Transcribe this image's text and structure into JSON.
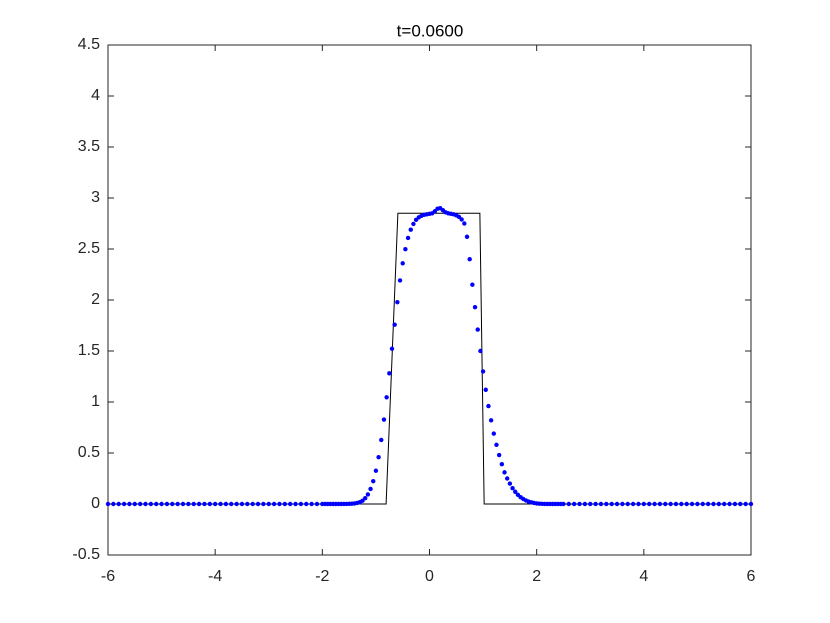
{
  "chart_data": {
    "type": "line",
    "title": "t=0.0600",
    "xlim": [
      -6,
      6
    ],
    "xticks": [
      -6,
      -4,
      -2,
      0,
      2,
      4,
      6
    ],
    "ylim": [
      -0.5,
      4.5
    ],
    "yticks": [
      -0.5,
      0,
      0.5,
      1,
      1.5,
      2,
      2.5,
      3,
      3.5,
      4,
      4.5
    ],
    "box": true,
    "series": [
      {
        "style": "line",
        "color": "#000000",
        "x": [
          -6,
          -0.81,
          -0.59,
          0.94,
          1.02,
          6
        ],
        "values": [
          0,
          0,
          2.85,
          2.85,
          0,
          0
        ]
      },
      {
        "style": "dots",
        "color": "#0000ff",
        "x": [
          -6,
          -5.9,
          -5.8,
          -5.7,
          -5.6,
          -5.5,
          -5.4,
          -5.3,
          -5.2,
          -5.1,
          -5,
          -4.9,
          -4.8,
          -4.7,
          -4.6,
          -4.5,
          -4.4,
          -4.3,
          -4.2,
          -4.1,
          -4,
          -3.9,
          -3.8,
          -3.7,
          -3.6,
          -3.5,
          -3.4,
          -3.3,
          -3.2,
          -3.1,
          -3,
          -2.9,
          -2.8,
          -2.7,
          -2.6,
          -2.5,
          -2.4,
          -2.3,
          -2.2,
          -2.1,
          -2,
          -1.95,
          -1.9,
          -1.85,
          -1.8,
          -1.75,
          -1.7,
          -1.65,
          -1.6,
          -1.55,
          -1.5,
          -1.45,
          -1.4,
          -1.35,
          -1.3,
          -1.25,
          -1.2,
          -1.15,
          -1.1,
          -1.05,
          -1,
          -0.95,
          -0.9,
          -0.85,
          -0.8,
          -0.75,
          -0.7,
          -0.65,
          -0.6,
          -0.55,
          -0.5,
          -0.45,
          -0.4,
          -0.35,
          -0.3,
          -0.25,
          -0.2,
          -0.15,
          -0.1,
          -0.05,
          0,
          0.05,
          0.1,
          0.15,
          0.2,
          0.25,
          0.3,
          0.35,
          0.4,
          0.45,
          0.5,
          0.55,
          0.6,
          0.65,
          0.7,
          0.75,
          0.8,
          0.85,
          0.9,
          0.95,
          1,
          1.05,
          1.1,
          1.15,
          1.2,
          1.25,
          1.3,
          1.35,
          1.4,
          1.45,
          1.5,
          1.55,
          1.6,
          1.65,
          1.7,
          1.75,
          1.8,
          1.85,
          1.9,
          1.95,
          2,
          2.05,
          2.1,
          2.15,
          2.2,
          2.25,
          2.3,
          2.35,
          2.4,
          2.45,
          2.5,
          2.6,
          2.7,
          2.8,
          2.9,
          3,
          3.1,
          3.2,
          3.3,
          3.4,
          3.5,
          3.6,
          3.7,
          3.8,
          3.9,
          4,
          4.1,
          4.2,
          4.3,
          4.4,
          4.5,
          4.6,
          4.7,
          4.8,
          4.9,
          5,
          5.1,
          5.2,
          5.3,
          5.4,
          5.5,
          5.6,
          5.7,
          5.8,
          5.9,
          6
        ],
        "values": [
          0,
          0,
          0,
          0,
          0,
          0,
          0,
          0,
          0,
          0,
          0,
          0,
          0,
          0,
          0,
          0,
          0,
          0,
          0,
          0,
          0,
          0,
          0,
          0,
          0,
          0,
          0,
          0,
          0,
          0,
          0,
          0,
          0,
          0,
          0,
          0,
          0,
          0,
          0,
          0,
          0,
          0,
          0,
          0,
          0,
          0,
          0,
          0,
          0.001,
          0.001,
          0.002,
          0.003,
          0.005,
          0.01,
          0.018,
          0.032,
          0.057,
          0.094,
          0.148,
          0.224,
          0.326,
          0.459,
          0.628,
          0.828,
          1.046,
          1.281,
          1.522,
          1.758,
          1.979,
          2.192,
          2.36,
          2.498,
          2.608,
          2.689,
          2.746,
          2.786,
          2.81,
          2.825,
          2.835,
          2.84,
          2.845,
          2.85,
          2.87,
          2.895,
          2.9,
          2.88,
          2.86,
          2.85,
          2.845,
          2.84,
          2.83,
          2.815,
          2.79,
          2.75,
          2.62,
          2.4,
          2.15,
          1.93,
          1.71,
          1.5,
          1.3,
          1.12,
          0.96,
          0.82,
          0.69,
          0.58,
          0.48,
          0.39,
          0.31,
          0.25,
          0.2,
          0.155,
          0.12,
          0.09,
          0.067,
          0.049,
          0.035,
          0.024,
          0.016,
          0.01,
          0.006,
          0.003,
          0.002,
          0.001,
          0,
          0,
          0,
          0,
          0,
          0,
          0,
          0,
          0,
          0,
          0,
          0,
          0,
          0,
          0,
          0,
          0,
          0,
          0,
          0,
          0,
          0,
          0,
          0,
          0,
          0,
          0,
          0,
          0,
          0,
          0,
          0,
          0,
          0,
          0,
          0,
          0,
          0,
          0,
          0,
          0,
          0
        ]
      }
    ]
  }
}
